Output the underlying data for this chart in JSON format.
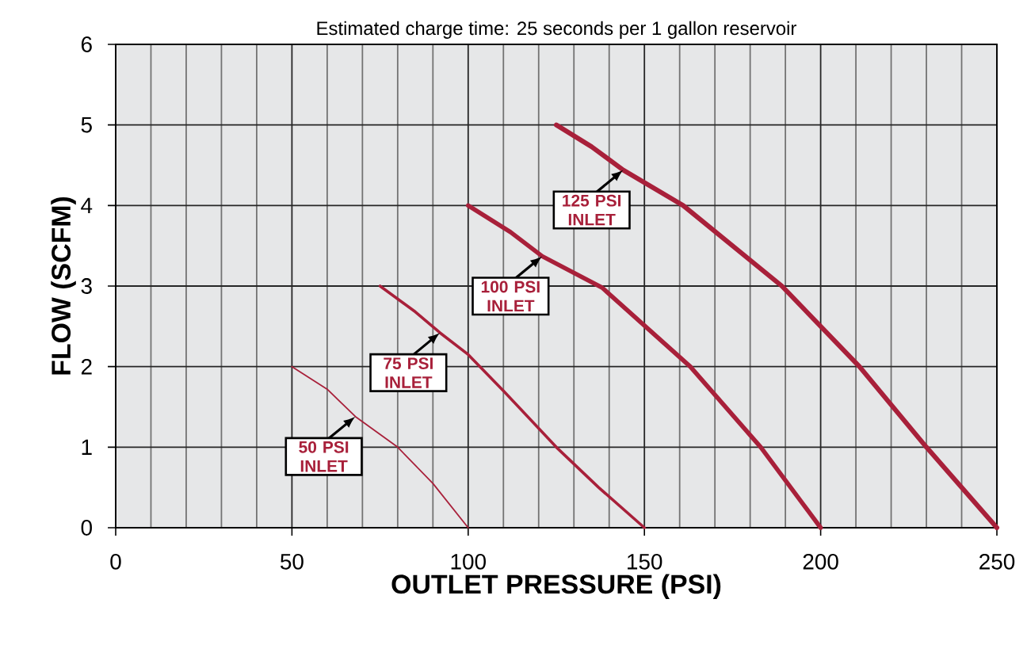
{
  "chart_data": {
    "type": "line",
    "title": "Estimated charge time: 25 seconds per 1 gallon reservoir",
    "xlabel": "OUTLET PRESSURE (PSI)",
    "ylabel": "FLOW (SCFM)",
    "xlim": [
      0,
      250
    ],
    "ylim": [
      0,
      6
    ],
    "xticks": [
      0,
      50,
      100,
      150,
      200,
      250
    ],
    "yticks": [
      0,
      1,
      2,
      3,
      4,
      5,
      6
    ],
    "grid": true,
    "marker": "none",
    "line_style": "solid",
    "series": [
      {
        "color": "#a8203a",
        "x": [
          50,
          60,
          68,
          80,
          90,
          100
        ],
        "values": [
          2.0,
          1.72,
          1.38,
          1.0,
          0.55,
          0.0
        ]
      },
      {
        "color": "#a8203a",
        "x": [
          75,
          85,
          92,
          100,
          110,
          125,
          137,
          150
        ],
        "values": [
          3.0,
          2.68,
          2.42,
          2.15,
          1.7,
          1.0,
          0.5,
          0.0
        ]
      },
      {
        "color": "#a8203a",
        "x": [
          100,
          112,
          121,
          138,
          163,
          183,
          200
        ],
        "values": [
          4.0,
          3.67,
          3.37,
          2.98,
          2.0,
          1.0,
          0.0
        ]
      },
      {
        "color": "#a8203a",
        "x": [
          125,
          135,
          144,
          161,
          189,
          211,
          230,
          250
        ],
        "values": [
          5.0,
          4.73,
          4.44,
          4.0,
          3.0,
          2.0,
          1.0,
          0.0
        ]
      }
    ],
    "annotations": [
      {
        "text": "50 PSI INLET",
        "x": 68,
        "y": 1.38
      },
      {
        "text": "75 PSI INLET",
        "x": 92,
        "y": 2.42
      },
      {
        "text": "100 PSI INLET",
        "x": 121,
        "y": 3.37
      },
      {
        "text": "125 PSI INLET",
        "x": 144,
        "y": 4.44
      }
    ]
  }
}
